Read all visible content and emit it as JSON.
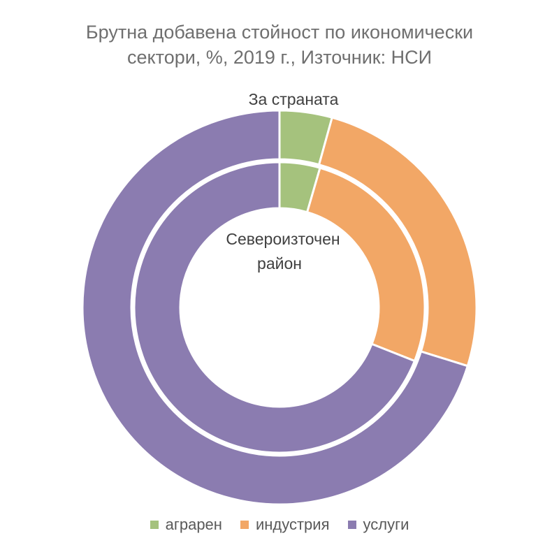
{
  "chart_data": {
    "type": "pie",
    "subtype": "doughnut",
    "title_lines": [
      "Брутна добавена стойност по икономически",
      "сектори, %, 2019 г., Източник: НСИ"
    ],
    "categories": [
      "аграрен",
      "индустрия",
      "услуги"
    ],
    "colors": [
      "#a5c27d",
      "#f2a766",
      "#8b7cb0"
    ],
    "series": [
      {
        "name": "За страната",
        "ring": "outer",
        "values": [
          4.3,
          25.5,
          70.2
        ]
      },
      {
        "name": "Североизточен район",
        "ring": "inner",
        "values": [
          4.5,
          26.5,
          69.0
        ]
      }
    ],
    "inner_label_lines": [
      "Североизточен",
      "район"
    ],
    "legend_position": "bottom"
  }
}
